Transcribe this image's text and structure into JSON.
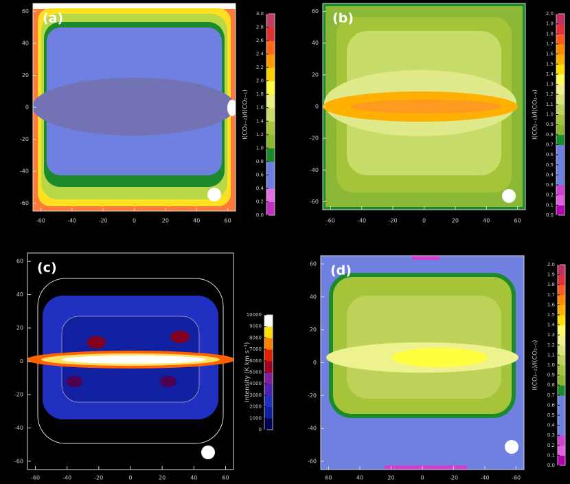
{
  "chart_data": [
    {
      "type": "image",
      "panel_label": "(a)",
      "colorbar_label": "I(CO₃₋₂)/I(CO₂₋₁)",
      "xlim": [
        -65,
        65
      ],
      "ylim": [
        -65,
        65
      ],
      "xticks": [
        -60,
        -40,
        -20,
        0,
        20,
        40,
        60
      ],
      "yticks": [
        60,
        40,
        20,
        0,
        -20,
        -40,
        -60
      ],
      "colorbar": {
        "lim": [
          0,
          3
        ],
        "ticks": [
          {
            "value": 0,
            "label": "0.0"
          },
          0.2,
          0.4,
          0.6,
          0.8,
          {
            "value": 1,
            "label": "1.0"
          },
          1.2,
          1.4,
          1.6,
          1.8,
          {
            "value": 2,
            "label": "2.0"
          },
          2.2,
          2.4,
          2.6,
          2.8,
          {
            "value": 3,
            "label": "3.0"
          }
        ],
        "colors": [
          "#c030c0",
          "#e070e0",
          "#6f7fe0",
          "#6f7fe0",
          "#1a8a2a",
          "#8ab830",
          "#a6c43a",
          "#c8dc6a",
          "#e8f080",
          "#ffff40",
          "#ffd000",
          "#ff9a00",
          "#ff6a1a",
          "#e03030",
          "#c04060"
        ]
      }
    },
    {
      "type": "image",
      "panel_label": "(b)",
      "colorbar_label": "I(CO₂₋₁)/I(CO₁₋₀)",
      "xlim": [
        -65,
        65
      ],
      "ylim": [
        -65,
        65
      ],
      "xticks": [
        -60,
        -40,
        -20,
        0,
        20,
        40,
        60
      ],
      "yticks": [
        60,
        40,
        20,
        0,
        -20,
        -40,
        -60
      ],
      "colorbar": {
        "lim": [
          0,
          2
        ],
        "ticks": [
          {
            "value": 0,
            "label": "0.0"
          },
          0.1,
          0.2,
          0.3,
          0.4,
          0.5,
          0.6,
          0.7,
          0.8,
          0.9,
          {
            "value": 1,
            "label": "1.0"
          },
          1.1,
          1.2,
          1.3,
          1.4,
          1.5,
          1.6,
          1.7,
          1.8,
          1.9,
          {
            "value": 2,
            "label": "2.0"
          }
        ],
        "colors": [
          "#b000b0",
          "#e060e0",
          "#d040d0",
          "#7080e0",
          "#7080e0",
          "#7080e0",
          "#7080e0",
          "#1a8c2a",
          "#8ab830",
          "#a6c43a",
          "#bed25a",
          "#d6e67a",
          "#eef28e",
          "#ffff60",
          "#ffe000",
          "#ffb000",
          "#ff8c00",
          "#ff5a20",
          "#e03040",
          "#c03060"
        ]
      }
    },
    {
      "type": "image",
      "panel_label": "(c)",
      "colorbar_label": "Intensity (K km s⁻¹)",
      "xlim": [
        -65,
        65
      ],
      "ylim": [
        -65,
        65
      ],
      "xticks": [
        -60,
        -40,
        -20,
        0,
        20,
        40,
        60
      ],
      "yticks": [
        60,
        40,
        20,
        0,
        -20,
        -40,
        -60
      ],
      "colorbar": {
        "lim": [
          0,
          10000
        ],
        "ticks": [
          0,
          1000,
          2000,
          3000,
          4000,
          5000,
          6000,
          7000,
          8000,
          9000,
          10000
        ],
        "colors": [
          "#000050",
          "#1020a0",
          "#2030c0",
          "#5020b0",
          "#8020a0",
          "#a00020",
          "#e02000",
          "#ff8000",
          "#ffe000",
          "#ffffff"
        ]
      }
    },
    {
      "type": "image",
      "panel_label": "(d)",
      "colorbar_label": "I(CO₃₋₂)/I(CO₁₋₀)",
      "xlim": [
        65,
        -65
      ],
      "ylim": [
        -65,
        65
      ],
      "xticks": [
        60,
        40,
        20,
        0,
        -20,
        -40,
        -60
      ],
      "yticks": [
        60,
        40,
        20,
        0,
        -20,
        -40,
        -60
      ],
      "colorbar": {
        "lim": [
          0,
          2
        ],
        "ticks": [
          {
            "value": 0,
            "label": "0.0"
          },
          0.1,
          0.2,
          0.3,
          0.4,
          0.5,
          0.6,
          0.7,
          0.8,
          0.9,
          {
            "value": 1,
            "label": "1.0"
          },
          1.1,
          1.2,
          1.3,
          1.4,
          1.5,
          1.6,
          1.7,
          1.8,
          1.9,
          {
            "value": 2,
            "label": "2.0"
          }
        ],
        "colors": [
          "#b000b0",
          "#e060e0",
          "#d040d0",
          "#7080e0",
          "#7080e0",
          "#7080e0",
          "#7080e0",
          "#1a8c2a",
          "#8ab830",
          "#a6c43a",
          "#bed25a",
          "#d6e67a",
          "#eef28e",
          "#ffff60",
          "#ffe000",
          "#ffb000",
          "#ff8c00",
          "#ff5a20",
          "#e03040",
          "#c03060"
        ]
      }
    }
  ]
}
